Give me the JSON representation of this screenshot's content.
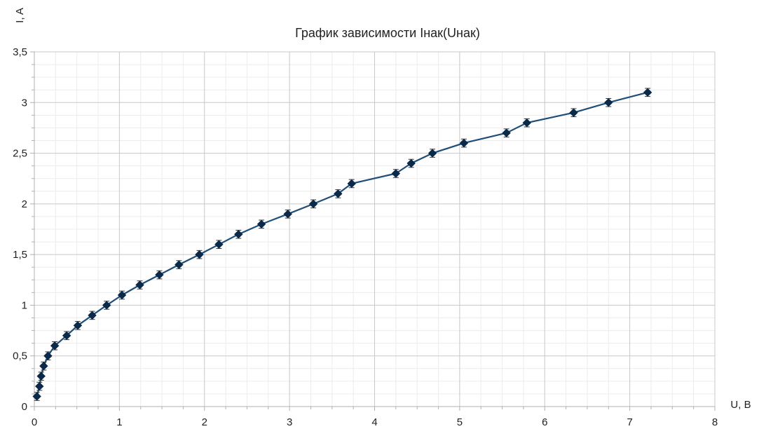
{
  "chart_data": {
    "type": "scatter",
    "title": "График зависимости Iнак(Uнак)",
    "xlabel": "U, В",
    "ylabel": "I, A",
    "xlim": [
      0,
      8
    ],
    "ylim": [
      0,
      3.5
    ],
    "x_ticks": [
      0,
      1,
      2,
      3,
      4,
      5,
      6,
      7,
      8
    ],
    "x_tick_labels": [
      "0",
      "1",
      "2",
      "3",
      "4",
      "5",
      "6",
      "7",
      "8"
    ],
    "y_ticks": [
      0,
      0.5,
      1,
      1.5,
      2,
      2.5,
      3,
      3.5
    ],
    "y_tick_labels": [
      "0",
      "0,5",
      "1",
      "1,5",
      "2",
      "2,5",
      "3",
      "3,5"
    ],
    "grid": true,
    "legend": "none",
    "error_bar_y": 0.04,
    "series": [
      {
        "color": "#1f4e79",
        "marker": "diamond",
        "line": true,
        "x": [
          0.03,
          0.06,
          0.08,
          0.11,
          0.16,
          0.24,
          0.38,
          0.51,
          0.68,
          0.85,
          1.03,
          1.24,
          1.47,
          1.7,
          1.94,
          2.17,
          2.4,
          2.67,
          2.98,
          3.28,
          3.57,
          3.73,
          4.25,
          4.43,
          4.68,
          5.05,
          5.55,
          5.79,
          6.34,
          6.75,
          7.21
        ],
        "y": [
          0.1,
          0.2,
          0.3,
          0.4,
          0.5,
          0.6,
          0.7,
          0.8,
          0.9,
          1.0,
          1.1,
          1.2,
          1.3,
          1.4,
          1.5,
          1.6,
          1.7,
          1.8,
          1.9,
          2.0,
          2.1,
          2.2,
          2.3,
          2.4,
          2.5,
          2.6,
          2.7,
          2.8,
          2.9,
          3.0,
          3.1
        ]
      }
    ]
  }
}
